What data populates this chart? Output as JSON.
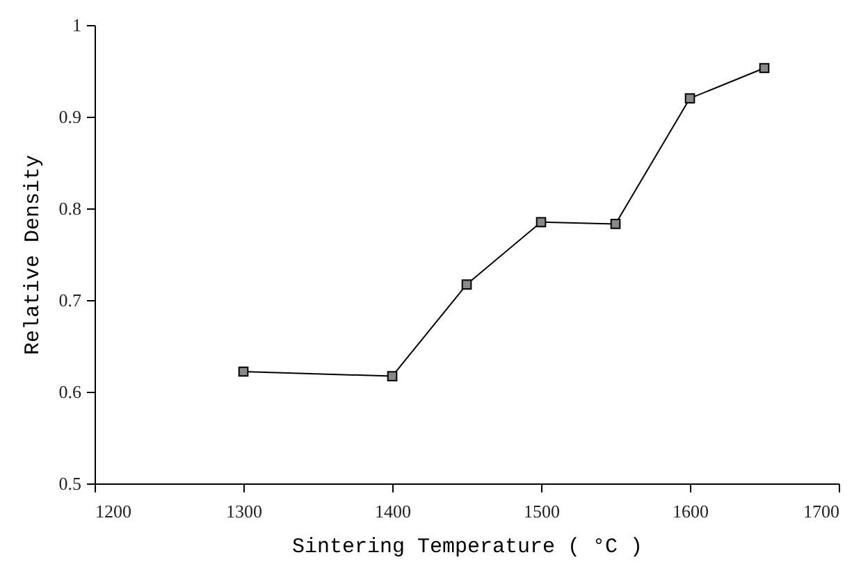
{
  "chart_data": {
    "type": "line",
    "xlabel": "Sintering Temperature ( °C )",
    "ylabel": "Relative Density",
    "x": [
      1300,
      1400,
      1450,
      1500,
      1550,
      1600,
      1650
    ],
    "series": [
      {
        "color": "#000000",
        "values": [
          0.622,
          0.617,
          0.717,
          0.785,
          0.783,
          0.92,
          0.953
        ]
      }
    ],
    "xlim": [
      1200,
      1700
    ],
    "xticks": [
      1200,
      1300,
      1400,
      1500,
      1600,
      1700
    ],
    "ylim": [
      0.5,
      1
    ],
    "yticks": [
      0.5,
      0.6,
      0.7,
      0.8,
      0.9,
      1
    ],
    "grid": false,
    "marker": "square",
    "line_style": "solid"
  }
}
